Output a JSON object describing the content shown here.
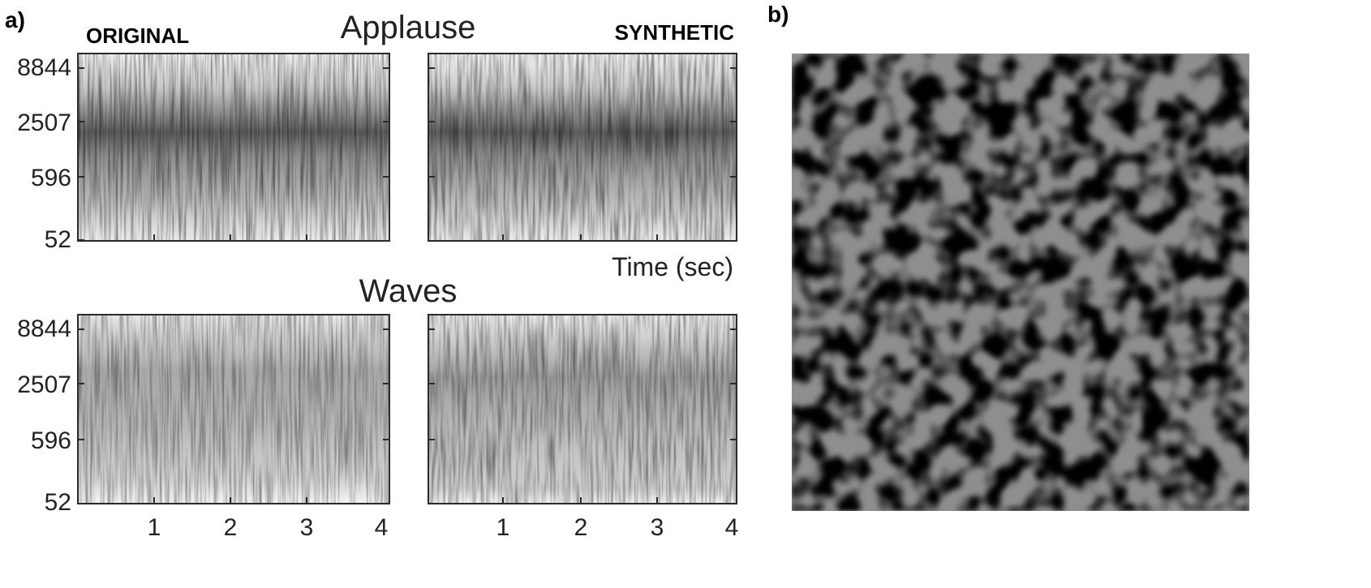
{
  "panel_a": {
    "label": "a)",
    "header_left": "ORIGINAL",
    "header_right": "SYNTHETIC",
    "rows": [
      {
        "title": "Applause",
        "yticks": [
          "8844",
          "2507",
          "596",
          "52"
        ],
        "time_label": "Time (sec)"
      },
      {
        "title": "Waves",
        "yticks": [
          "8844",
          "2507",
          "596",
          "52"
        ],
        "xticks": [
          "1",
          "2",
          "3",
          "4"
        ]
      }
    ]
  },
  "panel_b": {
    "label": "b)"
  },
  "colors": {
    "axis": "#2a2a2a",
    "text": "#222222",
    "texture_dark": "#303030",
    "texture_light": "#e0e0e0"
  }
}
